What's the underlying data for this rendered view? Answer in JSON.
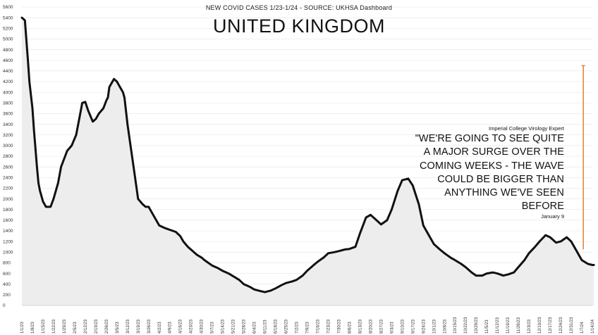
{
  "chart_data": {
    "type": "area",
    "title": "UNITED KINGDOM",
    "subtitle": "NEW COVID CASES 1/23-1/24 - SOURCE: UKHSA Dashboard",
    "xlabel": "",
    "ylabel": "",
    "ylim": [
      0,
      5600
    ],
    "yticks": [
      0,
      200,
      400,
      600,
      800,
      1000,
      1200,
      1400,
      1600,
      1800,
      2000,
      2200,
      2400,
      2600,
      2800,
      3000,
      3200,
      3400,
      3600,
      3800,
      4000,
      4200,
      4400,
      4600,
      4800,
      5000,
      5200,
      5400,
      5600
    ],
    "xticks": [
      "1/1/23",
      "1/8/23",
      "1/15/23",
      "1/22/23",
      "1/29/23",
      "2/5/23",
      "2/12/23",
      "2/19/23",
      "2/26/23",
      "3/5/23",
      "3/12/23",
      "3/19/23",
      "3/26/23",
      "4/2/23",
      "4/9/23",
      "4/16/23",
      "4/23/23",
      "4/30/23",
      "5/7/23",
      "5/14/23",
      "5/21/23",
      "5/28/23",
      "6/4/23",
      "6/11/23",
      "6/18/23",
      "6/25/23",
      "7/2/23",
      "7/9/23",
      "7/16/23",
      "7/23/23",
      "7/30/23",
      "8/6/23",
      "8/13/23",
      "8/20/23",
      "8/27/23",
      "9/3/23",
      "9/10/23",
      "9/17/23",
      "9/24/23",
      "10/1/23",
      "10/8/23",
      "10/15/23",
      "10/22/23",
      "10/29/23",
      "11/5/23",
      "11/12/23",
      "11/19/23",
      "11/26/23",
      "12/3/23",
      "12/10/23",
      "12/17/23",
      "12/24/23",
      "12/31/23",
      "1/7/24",
      "1/14/24"
    ],
    "grid": true,
    "legend": "none",
    "series": [
      {
        "color": "#111111",
        "fill": "#ededed",
        "x": [
          0,
          2,
          4,
          5,
          7,
          8,
          10,
          11,
          12,
          14,
          16,
          19,
          21,
          24,
          26,
          30,
          33,
          36,
          39,
          40,
          42,
          44,
          47,
          49,
          51,
          54,
          56,
          57,
          58,
          61,
          63,
          65,
          67,
          68,
          70,
          72,
          74,
          76,
          77,
          80,
          82,
          84,
          85,
          91,
          95,
          98,
          100,
          102,
          105,
          107,
          110,
          112,
          116,
          119,
          121,
          126,
          130,
          133,
          137,
          140,
          144,
          147,
          151,
          154,
          158,
          161,
          165,
          168,
          172,
          175,
          179,
          182,
          186,
          189,
          193,
          196,
          200,
          203,
          207,
          210,
          214,
          217,
          221,
          224,
          228,
          231,
          235,
          238,
          242,
          245,
          249,
          252,
          256,
          259,
          263,
          266,
          270,
          273,
          277,
          280,
          284,
          287,
          291,
          294,
          298,
          301,
          305,
          308,
          312,
          315,
          319,
          322,
          326,
          329,
          333,
          336,
          340,
          343,
          347,
          350,
          354,
          357,
          361,
          364,
          368,
          371,
          375,
          378,
          379
        ],
        "values": [
          5400,
          5350,
          4600,
          4200,
          3700,
          3300,
          2600,
          2300,
          2150,
          1950,
          1850,
          1850,
          2000,
          2300,
          2600,
          2900,
          3000,
          3200,
          3650,
          3800,
          3820,
          3650,
          3450,
          3500,
          3600,
          3700,
          3850,
          3900,
          4100,
          4250,
          4200,
          4100,
          4000,
          3900,
          3400,
          3000,
          2600,
          2200,
          2000,
          1900,
          1850,
          1850,
          1800,
          1500,
          1450,
          1420,
          1400,
          1380,
          1300,
          1200,
          1100,
          1050,
          950,
          900,
          850,
          750,
          700,
          650,
          600,
          550,
          480,
          400,
          350,
          300,
          270,
          250,
          280,
          320,
          380,
          420,
          450,
          480,
          560,
          650,
          750,
          820,
          900,
          980,
          1000,
          1020,
          1050,
          1060,
          1100,
          1350,
          1650,
          1700,
          1600,
          1520,
          1600,
          1800,
          2150,
          2350,
          2380,
          2250,
          1900,
          1500,
          1300,
          1150,
          1050,
          980,
          900,
          850,
          780,
          720,
          620,
          560,
          560,
          600,
          620,
          600,
          560,
          580,
          620,
          720,
          850,
          980,
          1100,
          1200,
          1320,
          1280,
          1180,
          1200,
          1280,
          1200,
          1000,
          850,
          780,
          760,
          760
        ]
      }
    ],
    "annotations": [
      {
        "source": "Imperial College Virology Expert",
        "quote": "\"WE'RE GOING TO SEE QUITE A MAJOR SURGE OVER THE COMING WEEKS - THE WAVE COULD BE BIGGER THAN ANYTHING WE'VE SEEN BEFORE",
        "date": "January 9",
        "x": 372,
        "y_from": 4500,
        "y_to": 1050,
        "color": "#e08a3a"
      }
    ]
  }
}
